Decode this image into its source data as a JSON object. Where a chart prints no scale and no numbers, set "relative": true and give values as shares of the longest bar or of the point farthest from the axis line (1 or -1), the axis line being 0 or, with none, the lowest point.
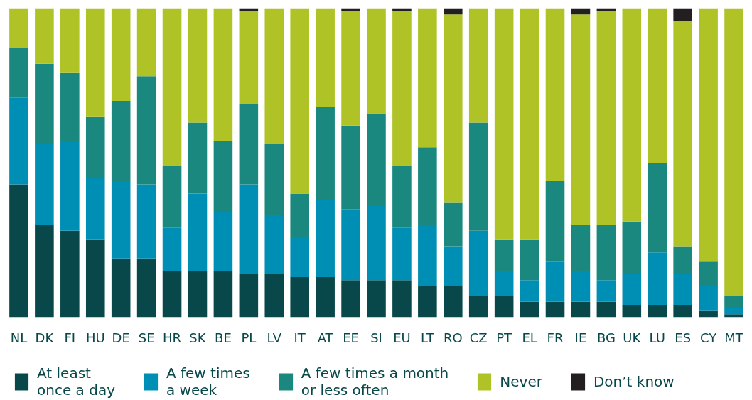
{
  "chart_data": {
    "type": "bar",
    "stacked": true,
    "relative": true,
    "legend": "bottom",
    "grid": false,
    "categories": [
      "NL",
      "DK",
      "FI",
      "HU",
      "DE",
      "SE",
      "HR",
      "SK",
      "BE",
      "PL",
      "LV",
      "IT",
      "AT",
      "EE",
      "SI",
      "EU",
      "LT",
      "RO",
      "CZ",
      "PT",
      "EL",
      "FR",
      "IE",
      "BG",
      "UK",
      "LU",
      "ES",
      "CY",
      "MT"
    ],
    "series": [
      {
        "name": "At least\nonce a day",
        "color": "#08484a",
        "values": [
          0.43,
          0.3,
          0.28,
          0.25,
          0.19,
          0.19,
          0.15,
          0.15,
          0.15,
          0.14,
          0.14,
          0.13,
          0.13,
          0.12,
          0.12,
          0.12,
          0.1,
          0.1,
          0.07,
          0.07,
          0.05,
          0.05,
          0.05,
          0.05,
          0.04,
          0.04,
          0.04,
          0.02,
          0.01
        ]
      },
      {
        "name": "A few times\na week",
        "color": "#008fb4",
        "values": [
          0.28,
          0.26,
          0.29,
          0.2,
          0.25,
          0.24,
          0.14,
          0.25,
          0.19,
          0.29,
          0.19,
          0.13,
          0.25,
          0.23,
          0.24,
          0.17,
          0.2,
          0.13,
          0.21,
          0.08,
          0.07,
          0.13,
          0.1,
          0.07,
          0.1,
          0.17,
          0.1,
          0.08,
          0.02
        ]
      },
      {
        "name": "A few times a month\nor less often",
        "color": "#1b8880",
        "values": [
          0.16,
          0.26,
          0.22,
          0.2,
          0.26,
          0.35,
          0.2,
          0.23,
          0.23,
          0.26,
          0.23,
          0.14,
          0.3,
          0.27,
          0.3,
          0.2,
          0.25,
          0.14,
          0.35,
          0.1,
          0.13,
          0.26,
          0.15,
          0.18,
          0.17,
          0.29,
          0.09,
          0.08,
          0.04
        ]
      },
      {
        "name": "Never",
        "color": "#afc226",
        "values": [
          0.13,
          0.18,
          0.21,
          0.35,
          0.3,
          0.22,
          0.51,
          0.37,
          0.43,
          0.3,
          0.44,
          0.6,
          0.32,
          0.37,
          0.34,
          0.5,
          0.45,
          0.61,
          0.37,
          0.75,
          0.75,
          0.56,
          0.68,
          0.69,
          0.69,
          0.5,
          0.73,
          0.82,
          0.93
        ]
      },
      {
        "name": "Don’t know",
        "color": "#231f20",
        "values": [
          null,
          null,
          null,
          null,
          null,
          null,
          null,
          null,
          null,
          0.01,
          null,
          null,
          null,
          0.01,
          null,
          0.01,
          null,
          0.02,
          null,
          null,
          null,
          null,
          0.02,
          0.01,
          null,
          null,
          0.04,
          null,
          null
        ]
      }
    ]
  }
}
